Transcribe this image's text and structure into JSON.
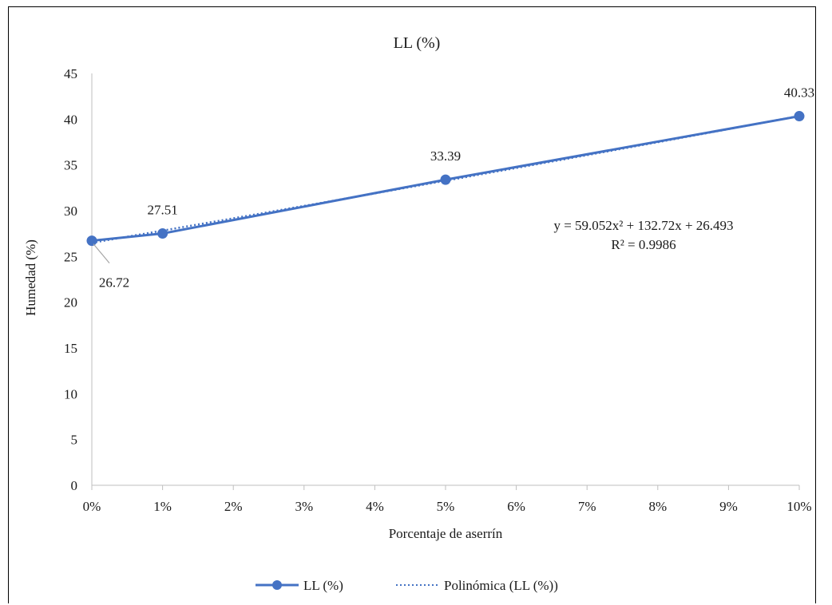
{
  "chart_data": {
    "type": "line",
    "title": "LL (%)",
    "xlabel": "Porcentaje de aserrín",
    "ylabel": "Humedad (%)",
    "x_domain": [
      0,
      0.1
    ],
    "ylim": [
      0,
      45
    ],
    "y_ticks": [
      0,
      5,
      10,
      15,
      20,
      25,
      30,
      35,
      40,
      45
    ],
    "x_tick_labels": [
      "0%",
      "1%",
      "2%",
      "3%",
      "4%",
      "5%",
      "6%",
      "7%",
      "8%",
      "9%",
      "10%"
    ],
    "x_tick_values": [
      0,
      0.01,
      0.02,
      0.03,
      0.04,
      0.05,
      0.06,
      0.07,
      0.08,
      0.09,
      0.1
    ],
    "grid": false,
    "legend_position": "bottom",
    "series": [
      {
        "name": "LL (%)",
        "color": "#4472C4",
        "x": [
          0,
          0.01,
          0.05,
          0.1
        ],
        "y": [
          26.72,
          27.51,
          33.39,
          40.33
        ],
        "data_labels": [
          "26.72",
          "27.51",
          "33.39",
          "40.33"
        ]
      }
    ],
    "trendline": {
      "name": "Polinómica (LL (%))",
      "type": "polynomial",
      "color": "#4472C4",
      "coefficients": {
        "a": 59.052,
        "b": 132.72,
        "c": 26.493
      },
      "equation_text": "y = 59.052x² + 132.72x + 26.493",
      "r2_text": "R² = 0.9986"
    }
  }
}
